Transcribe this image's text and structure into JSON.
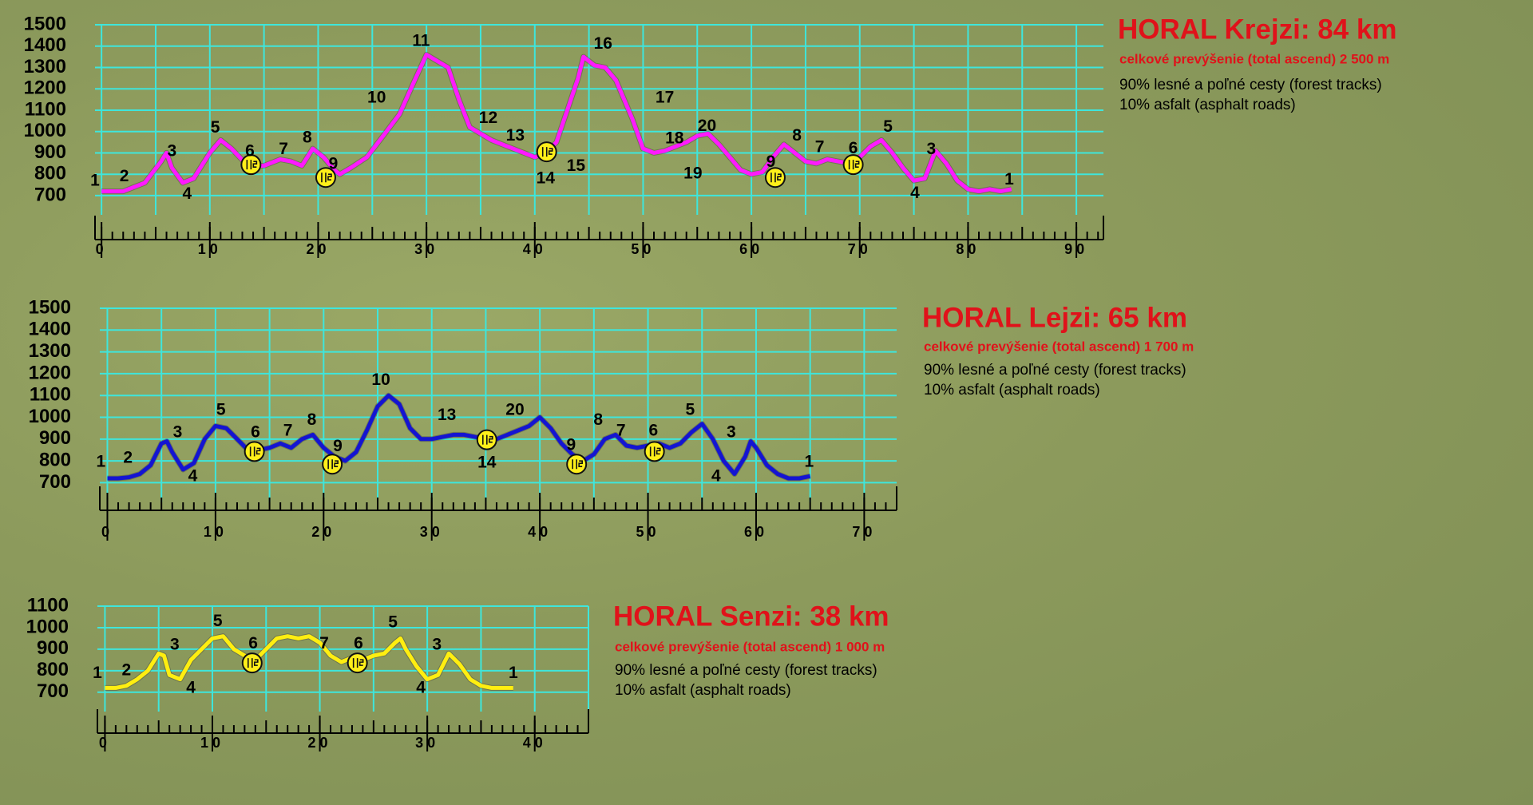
{
  "chart_data": [
    {
      "type": "line",
      "title": "HORAL Krejzi: 84 km",
      "subtitle": "celkové prevýšenie (total ascend)  2 500 m",
      "notes": [
        "90% lesné a poľné cesty (forest tracks)",
        "10% asfalt (asphalt roads)"
      ],
      "color": "#ff1aff",
      "x": [
        0,
        2,
        4,
        5.5,
        6,
        6.5,
        7.5,
        8.5,
        10,
        11,
        12,
        13.5,
        15,
        16.5,
        17.5,
        18.5,
        19.5,
        20.5,
        21.5,
        22,
        23,
        24.5,
        26,
        27.5,
        29,
        30,
        31,
        32,
        33,
        34,
        35,
        36,
        37,
        38,
        39,
        40,
        41,
        42,
        43,
        44,
        44.5,
        45.5,
        46.5,
        47.5,
        48.5,
        49,
        50,
        51,
        52,
        53,
        54,
        55,
        56,
        57,
        58,
        59,
        60,
        61,
        62,
        63,
        64,
        65,
        66,
        67,
        68,
        69,
        70,
        71,
        72,
        73,
        74,
        75,
        76,
        77,
        78,
        79,
        80,
        81,
        82,
        83,
        84
      ],
      "values": [
        720,
        720,
        760,
        860,
        900,
        830,
        760,
        780,
        900,
        960,
        920,
        840,
        840,
        870,
        860,
        840,
        920,
        880,
        820,
        800,
        830,
        880,
        980,
        1080,
        1250,
        1360,
        1330,
        1300,
        1150,
        1020,
        990,
        960,
        940,
        920,
        900,
        880,
        900,
        950,
        1100,
        1250,
        1350,
        1310,
        1300,
        1240,
        1120,
        1060,
        920,
        900,
        910,
        930,
        950,
        980,
        990,
        940,
        880,
        820,
        800,
        810,
        880,
        940,
        900,
        860,
        850,
        870,
        860,
        850,
        880,
        930,
        960,
        900,
        830,
        770,
        780,
        910,
        850,
        770,
        730,
        720,
        730,
        720,
        730
      ],
      "xlim": [
        -0.6,
        92.5
      ],
      "ylim": [
        610,
        1500
      ],
      "xticks": [
        0,
        10,
        20,
        30,
        40,
        50,
        60,
        70,
        80,
        90
      ],
      "yticks": [
        700,
        800,
        900,
        1000,
        1100,
        1200,
        1300,
        1400,
        1500
      ],
      "annotations": [
        {
          "text": "1",
          "x": -0.6,
          "y": 768
        },
        {
          "text": "2",
          "x": 2.1,
          "y": 787
        },
        {
          "text": "3",
          "x": 6.5,
          "y": 905
        },
        {
          "text": "4",
          "x": 7.9,
          "y": 705
        },
        {
          "text": "5",
          "x": 10.5,
          "y": 1015
        },
        {
          "text": "6",
          "x": 13.7,
          "y": 905
        },
        {
          "text": "7",
          "x": 16.8,
          "y": 915
        },
        {
          "text": "8",
          "x": 19,
          "y": 970
        },
        {
          "text": "9",
          "x": 21.4,
          "y": 846
        },
        {
          "text": "10",
          "x": 25.4,
          "y": 1157
        },
        {
          "text": "11",
          "x": 29.5,
          "y": 1421
        },
        {
          "text": "12",
          "x": 35.7,
          "y": 1061
        },
        {
          "text": "13",
          "x": 38.2,
          "y": 979
        },
        {
          "text": "14",
          "x": 41,
          "y": 778
        },
        {
          "text": "15",
          "x": 43.8,
          "y": 837
        },
        {
          "text": "16",
          "x": 46.3,
          "y": 1408
        },
        {
          "text": "17",
          "x": 52,
          "y": 1157
        },
        {
          "text": "18",
          "x": 52.9,
          "y": 965
        },
        {
          "text": "19",
          "x": 54.6,
          "y": 800
        },
        {
          "text": "20",
          "x": 55.9,
          "y": 1024
        },
        {
          "text": "9",
          "x": 61.8,
          "y": 855
        },
        {
          "text": "8",
          "x": 64.2,
          "y": 979
        },
        {
          "text": "7",
          "x": 66.3,
          "y": 924
        },
        {
          "text": "6",
          "x": 69.4,
          "y": 919
        },
        {
          "text": "5",
          "x": 72.6,
          "y": 1020
        },
        {
          "text": "3",
          "x": 76.6,
          "y": 915
        },
        {
          "text": "4",
          "x": 75.1,
          "y": 709
        },
        {
          "text": "1",
          "x": 83.8,
          "y": 773
        }
      ],
      "stations": [
        {
          "x": 13.8,
          "y": 845
        },
        {
          "x": 20.7,
          "y": 785
        },
        {
          "x": 41.1,
          "y": 905
        },
        {
          "x": 62.2,
          "y": 785
        },
        {
          "x": 69.4,
          "y": 845
        }
      ]
    },
    {
      "type": "line",
      "title": "HORAL Lejzi: 65 km",
      "subtitle": "celkové prevýšenie (total ascend)  1 700 m",
      "notes": [
        "90% lesné a poľné cesty (forest tracks)",
        "10% asfalt (asphalt roads)"
      ],
      "color": "#1414d2",
      "x": [
        0,
        1,
        2,
        3,
        4,
        5,
        5.5,
        6,
        7,
        8,
        9,
        10,
        11,
        12,
        13,
        14,
        15,
        16,
        17,
        18,
        19,
        20,
        21,
        22,
        23,
        24,
        25,
        26,
        27,
        28,
        29,
        30,
        31,
        32,
        33,
        34,
        35,
        36,
        37,
        38,
        39,
        40,
        41,
        42,
        43,
        44,
        45,
        46,
        47,
        48,
        49,
        50,
        51,
        52,
        53,
        54,
        55,
        56,
        57,
        58,
        59,
        59.5,
        60,
        61,
        62,
        63,
        64,
        65
      ],
      "values": [
        720,
        720,
        725,
        740,
        780,
        880,
        890,
        840,
        760,
        790,
        900,
        960,
        950,
        900,
        850,
        850,
        860,
        880,
        860,
        900,
        920,
        860,
        820,
        800,
        840,
        940,
        1050,
        1100,
        1060,
        950,
        900,
        900,
        910,
        920,
        920,
        910,
        900,
        900,
        920,
        940,
        960,
        1000,
        950,
        880,
        830,
        800,
        830,
        900,
        920,
        870,
        860,
        870,
        880,
        860,
        880,
        930,
        970,
        900,
        800,
        740,
        820,
        890,
        860,
        780,
        740,
        720,
        720,
        730
      ],
      "xlim": [
        -0.7,
        73
      ],
      "ylim": [
        610,
        1500
      ],
      "xticks": [
        0,
        10,
        20,
        30,
        40,
        50,
        60,
        70
      ],
      "yticks": [
        700,
        800,
        900,
        1000,
        1100,
        1200,
        1300,
        1400,
        1500
      ],
      "annotations": [
        {
          "text": "1",
          "x": -0.6,
          "y": 794
        },
        {
          "text": "2",
          "x": 1.9,
          "y": 812
        },
        {
          "text": "3",
          "x": 6.5,
          "y": 928
        },
        {
          "text": "4",
          "x": 7.9,
          "y": 727
        },
        {
          "text": "5",
          "x": 10.5,
          "y": 1031
        },
        {
          "text": "6",
          "x": 13.7,
          "y": 928
        },
        {
          "text": "7",
          "x": 16.7,
          "y": 937
        },
        {
          "text": "8",
          "x": 18.9,
          "y": 986
        },
        {
          "text": "9",
          "x": 21.3,
          "y": 865
        },
        {
          "text": "10",
          "x": 25.3,
          "y": 1169
        },
        {
          "text": "13",
          "x": 31.4,
          "y": 1008
        },
        {
          "text": "20",
          "x": 37.7,
          "y": 1031
        },
        {
          "text": "14",
          "x": 35.1,
          "y": 789
        },
        {
          "text": "9",
          "x": 42.9,
          "y": 870
        },
        {
          "text": "8",
          "x": 45.4,
          "y": 986
        },
        {
          "text": "7",
          "x": 47.5,
          "y": 937
        },
        {
          "text": "6",
          "x": 50.5,
          "y": 937
        },
        {
          "text": "5",
          "x": 53.9,
          "y": 1031
        },
        {
          "text": "3",
          "x": 57.7,
          "y": 928
        },
        {
          "text": "4",
          "x": 56.3,
          "y": 727
        },
        {
          "text": "1",
          "x": 64.9,
          "y": 794
        }
      ],
      "stations": [
        {
          "x": 13.6,
          "y": 843
        },
        {
          "x": 20.8,
          "y": 785
        },
        {
          "x": 35.1,
          "y": 897
        },
        {
          "x": 43.4,
          "y": 785
        },
        {
          "x": 50.6,
          "y": 843
        }
      ]
    },
    {
      "type": "line",
      "title": "HORAL Senzi: 38 km",
      "subtitle": "celkové prevýšenie  (total ascend) 1 000 m",
      "notes": [
        "90% lesné a poľné cesty (forest tracks)",
        "10% asfalt (asphalt roads)"
      ],
      "color": "#ffee10",
      "x": [
        0,
        1,
        2,
        3,
        4,
        5,
        5.5,
        6,
        7,
        8,
        10,
        11,
        12,
        13,
        14,
        15,
        16,
        17,
        18,
        19,
        20,
        21,
        22,
        23,
        24,
        25,
        26,
        27,
        27.5,
        28,
        29,
        30,
        31,
        32,
        33,
        34,
        35,
        36,
        37,
        38
      ],
      "values": [
        720,
        720,
        730,
        760,
        800,
        880,
        870,
        780,
        760,
        850,
        950,
        960,
        900,
        870,
        850,
        900,
        950,
        960,
        950,
        960,
        930,
        870,
        840,
        860,
        850,
        870,
        880,
        930,
        950,
        900,
        820,
        760,
        780,
        880,
        830,
        760,
        730,
        720,
        720,
        720
      ],
      "xlim": [
        -0.7,
        45
      ],
      "ylim": [
        610,
        1100
      ],
      "xticks": [
        0,
        10,
        20,
        30,
        40
      ],
      "yticks": [
        700,
        800,
        900,
        1000,
        1100
      ],
      "annotations": [
        {
          "text": "1",
          "x": -0.7,
          "y": 786
        },
        {
          "text": "2",
          "x": 2,
          "y": 800
        },
        {
          "text": "3",
          "x": 6.5,
          "y": 918
        },
        {
          "text": "4",
          "x": 8,
          "y": 718
        },
        {
          "text": "5",
          "x": 10.5,
          "y": 1027
        },
        {
          "text": "6",
          "x": 13.8,
          "y": 923
        },
        {
          "text": "7",
          "x": 20.4,
          "y": 923
        },
        {
          "text": "6",
          "x": 23.6,
          "y": 923
        },
        {
          "text": "5",
          "x": 26.8,
          "y": 1023
        },
        {
          "text": "3",
          "x": 30.9,
          "y": 918
        },
        {
          "text": "4",
          "x": 29.4,
          "y": 718
        },
        {
          "text": "1",
          "x": 38,
          "y": 786
        }
      ],
      "stations": [
        {
          "x": 13.7,
          "y": 836
        },
        {
          "x": 23.5,
          "y": 836
        }
      ]
    }
  ]
}
